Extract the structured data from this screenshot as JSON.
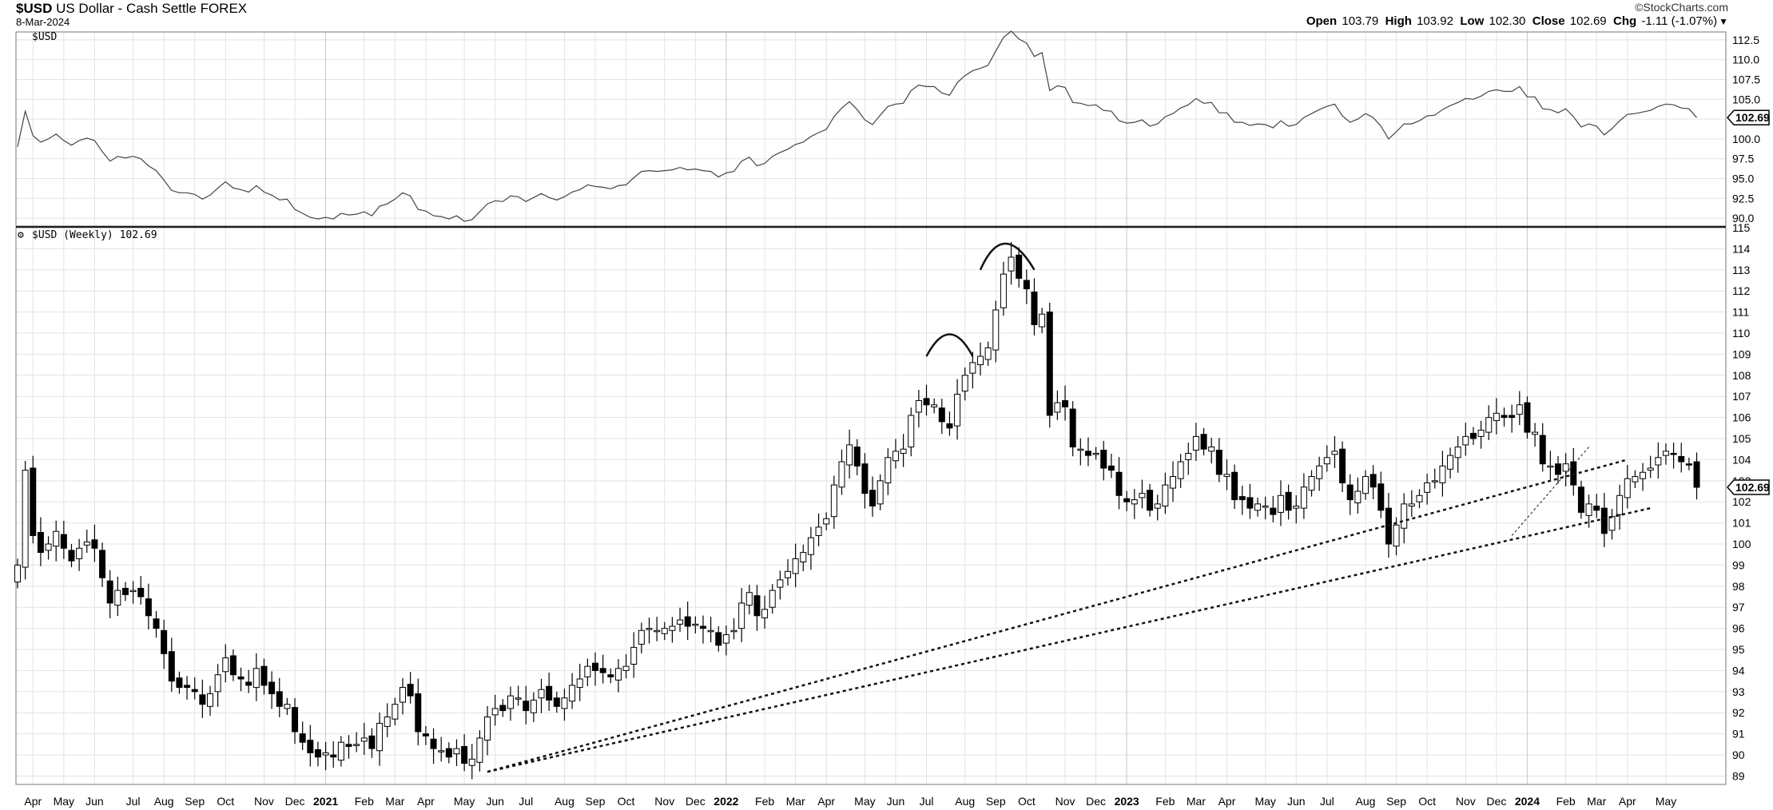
{
  "header": {
    "symbol": "$USD",
    "description": "US Dollar - Cash Settle",
    "exchange": "FOREX",
    "date": "8-Mar-2024",
    "brand": "©StockCharts.com",
    "open_label": "Open",
    "open": "103.79",
    "high_label": "High",
    "high": "103.92",
    "low_label": "Low",
    "low": "102.30",
    "close_label": "Close",
    "close": "102.69",
    "chg_label": "Chg",
    "chg": "-1.11 (-1.07%)"
  },
  "colors": {
    "up_fill": "#ffffff",
    "down_fill": "#000000",
    "grid": "#e3e3e3",
    "line": "#000000"
  },
  "chart_data": [
    {
      "type": "line",
      "panel": "top",
      "title": "$USD",
      "ylim": [
        89,
        113.5
      ],
      "yticks": [
        90.0,
        92.5,
        95.0,
        97.5,
        100.0,
        102.5,
        105.0,
        107.5,
        110.0,
        112.5
      ],
      "last_value": "102.69",
      "grid": true
    },
    {
      "type": "candlestick",
      "panel": "main",
      "title": "$USD (Weekly) 102.69",
      "ylim": [
        88.6,
        115
      ],
      "yticks": [
        89,
        90,
        91,
        92,
        93,
        94,
        95,
        96,
        97,
        98,
        99,
        100,
        101,
        102,
        103,
        104,
        105,
        106,
        107,
        108,
        109,
        110,
        111,
        112,
        113,
        114,
        115
      ],
      "last_value": "102.69",
      "grid": true,
      "x_labels": [
        {
          "label": "Apr",
          "week": 2,
          "bold": false
        },
        {
          "label": "May",
          "week": 6,
          "bold": false
        },
        {
          "label": "Jun",
          "week": 10,
          "bold": false
        },
        {
          "label": "Jul",
          "week": 15,
          "bold": false
        },
        {
          "label": "Aug",
          "week": 19,
          "bold": false
        },
        {
          "label": "Sep",
          "week": 23,
          "bold": false
        },
        {
          "label": "Oct",
          "week": 27,
          "bold": false
        },
        {
          "label": "Nov",
          "week": 32,
          "bold": false
        },
        {
          "label": "Dec",
          "week": 36,
          "bold": false
        },
        {
          "label": "2021",
          "week": 40,
          "bold": true
        },
        {
          "label": "Feb",
          "week": 45,
          "bold": false
        },
        {
          "label": "Mar",
          "week": 49,
          "bold": false
        },
        {
          "label": "Apr",
          "week": 53,
          "bold": false
        },
        {
          "label": "May",
          "week": 58,
          "bold": false
        },
        {
          "label": "Jun",
          "week": 62,
          "bold": false
        },
        {
          "label": "Jul",
          "week": 66,
          "bold": false
        },
        {
          "label": "Aug",
          "week": 71,
          "bold": false
        },
        {
          "label": "Sep",
          "week": 75,
          "bold": false
        },
        {
          "label": "Oct",
          "week": 79,
          "bold": false
        },
        {
          "label": "Nov",
          "week": 84,
          "bold": false
        },
        {
          "label": "Dec",
          "week": 88,
          "bold": false
        },
        {
          "label": "2022",
          "week": 92,
          "bold": true
        },
        {
          "label": "Feb",
          "week": 97,
          "bold": false
        },
        {
          "label": "Mar",
          "week": 101,
          "bold": false
        },
        {
          "label": "Apr",
          "week": 105,
          "bold": false
        },
        {
          "label": "May",
          "week": 110,
          "bold": false
        },
        {
          "label": "Jun",
          "week": 114,
          "bold": false
        },
        {
          "label": "Jul",
          "week": 118,
          "bold": false
        },
        {
          "label": "Aug",
          "week": 123,
          "bold": false
        },
        {
          "label": "Sep",
          "week": 127,
          "bold": false
        },
        {
          "label": "Oct",
          "week": 131,
          "bold": false
        },
        {
          "label": "Nov",
          "week": 136,
          "bold": false
        },
        {
          "label": "Dec",
          "week": 140,
          "bold": false
        },
        {
          "label": "2023",
          "week": 144,
          "bold": true
        },
        {
          "label": "Feb",
          "week": 149,
          "bold": false
        },
        {
          "label": "Mar",
          "week": 153,
          "bold": false
        },
        {
          "label": "Apr",
          "week": 157,
          "bold": false
        },
        {
          "label": "May",
          "week": 162,
          "bold": false
        },
        {
          "label": "Jun",
          "week": 166,
          "bold": false
        },
        {
          "label": "Jul",
          "week": 170,
          "bold": false
        },
        {
          "label": "Aug",
          "week": 175,
          "bold": false
        },
        {
          "label": "Sep",
          "week": 179,
          "bold": false
        },
        {
          "label": "Oct",
          "week": 183,
          "bold": false
        },
        {
          "label": "Nov",
          "week": 188,
          "bold": false
        },
        {
          "label": "Dec",
          "week": 192,
          "bold": false
        },
        {
          "label": "2024",
          "week": 196,
          "bold": true
        },
        {
          "label": "Feb",
          "week": 201,
          "bold": false
        },
        {
          "label": "Mar",
          "week": 205,
          "bold": false
        },
        {
          "label": "Apr",
          "week": 209,
          "bold": false
        },
        {
          "label": "May",
          "week": 214,
          "bold": false
        }
      ],
      "weekly_close": [
        99.0,
        103.5,
        100.4,
        99.6,
        100.0,
        100.6,
        99.8,
        99.2,
        99.8,
        100.1,
        99.8,
        98.4,
        97.2,
        97.8,
        97.6,
        97.8,
        97.5,
        96.6,
        96.0,
        94.8,
        93.5,
        93.2,
        93.2,
        93.0,
        92.4,
        92.9,
        93.8,
        94.6,
        93.8,
        93.6,
        93.3,
        94.1,
        93.3,
        92.9,
        92.3,
        92.4,
        91.1,
        90.6,
        90.1,
        89.9,
        90.1,
        89.9,
        90.6,
        90.4,
        90.5,
        90.8,
        90.3,
        91.5,
        91.8,
        92.4,
        93.2,
        92.8,
        91.1,
        90.9,
        90.3,
        90.2,
        89.9,
        90.3,
        89.6,
        89.8,
        90.8,
        91.8,
        92.2,
        92.1,
        92.8,
        92.7,
        92.1,
        92.6,
        93.1,
        92.6,
        92.3,
        92.7,
        93.3,
        93.6,
        94.2,
        94.0,
        93.9,
        93.7,
        94.1,
        94.2,
        95.1,
        95.9,
        96.0,
        95.9,
        96.0,
        96.1,
        96.4,
        96.1,
        96.2,
        96.0,
        95.9,
        95.2,
        95.7,
        95.9,
        97.2,
        97.7,
        96.6,
        96.9,
        97.8,
        98.3,
        98.7,
        99.3,
        99.6,
        100.3,
        100.8,
        101.2,
        102.8,
        103.9,
        104.7,
        103.7,
        102.4,
        101.8,
        103.0,
        104.1,
        104.4,
        104.5,
        106.1,
        106.8,
        106.6,
        106.6,
        105.8,
        105.5,
        107.1,
        108.0,
        108.6,
        108.9,
        109.3,
        111.1,
        112.8,
        113.6,
        112.6,
        112.1,
        110.4,
        110.9,
        106.1,
        106.7,
        106.5,
        104.6,
        104.5,
        104.2,
        104.3,
        103.6,
        103.5,
        102.3,
        102.0,
        102.1,
        102.4,
        101.6,
        101.9,
        102.8,
        103.2,
        103.9,
        104.3,
        105.1,
        104.5,
        104.6,
        103.3,
        103.3,
        102.1,
        102.1,
        101.7,
        101.9,
        101.8,
        101.4,
        102.3,
        101.6,
        101.8,
        102.7,
        103.2,
        103.7,
        104.1,
        104.4,
        102.9,
        102.1,
        102.5,
        103.2,
        102.7,
        101.6,
        100.0,
        100.9,
        101.9,
        101.9,
        102.3,
        102.9,
        103.0,
        103.7,
        104.2,
        104.6,
        105.1,
        105.0,
        105.4,
        106.0,
        106.2,
        106.0,
        106.0,
        106.6,
        105.3,
        105.3,
        103.8,
        103.7,
        103.3,
        103.8,
        102.8,
        101.5,
        101.9,
        101.6,
        100.5,
        101.3,
        102.3,
        103.1,
        103.2,
        103.4,
        103.6,
        104.1,
        104.4,
        104.3,
        103.9,
        103.8,
        102.69
      ],
      "annotations": [
        {
          "type": "trendline",
          "style": "dotted",
          "points": [
            [
              61,
              89.2
            ],
            [
              209,
              104.0
            ]
          ]
        },
        {
          "type": "trendline",
          "style": "dotted",
          "points": [
            [
              61,
              89.2
            ],
            [
              212,
              101.7
            ]
          ]
        },
        {
          "type": "trendline",
          "style": "dashed-thin",
          "points": [
            [
              194,
              100.4
            ],
            [
              204,
              104.6
            ]
          ]
        },
        {
          "type": "arc",
          "points": [
            [
              118,
              108.9
            ],
            [
              121,
              110.0
            ],
            [
              124,
              108.9
            ]
          ]
        },
        {
          "type": "arc",
          "points": [
            [
              125,
              113.0
            ],
            [
              128,
              114.5
            ],
            [
              132,
              113.0
            ]
          ]
        }
      ]
    }
  ]
}
